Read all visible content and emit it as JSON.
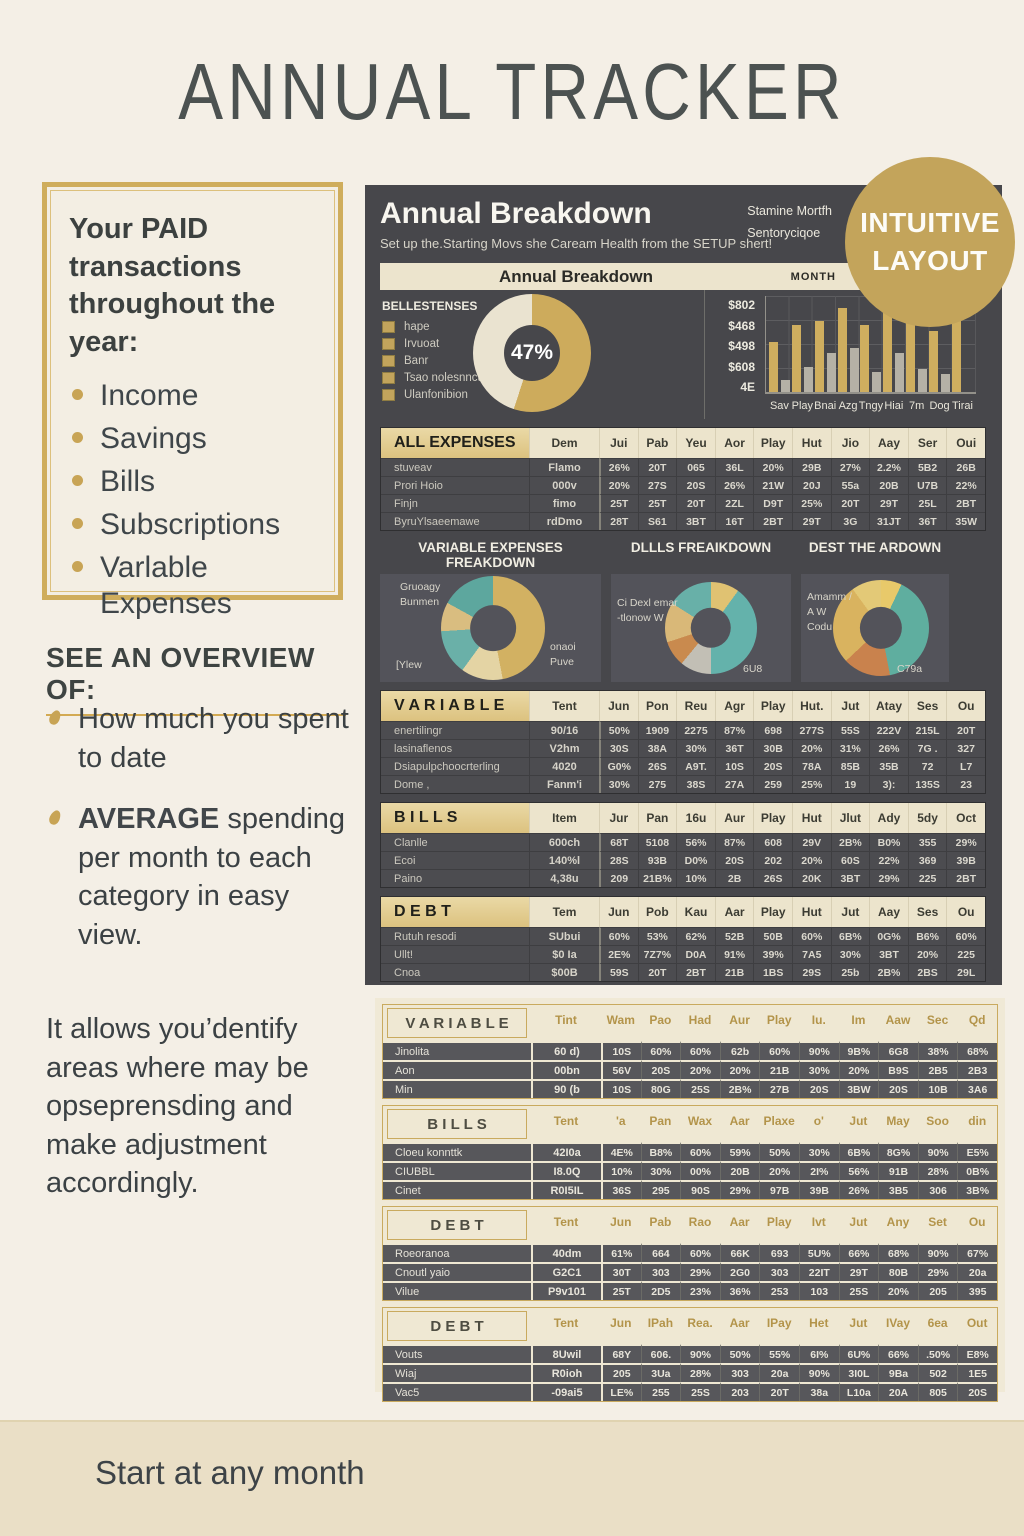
{
  "page": {
    "title": "ANNUAL TRACKER",
    "footer": "Start at any month",
    "background": "#f4efe6",
    "accent_gold": "#c9a959"
  },
  "left": {
    "paid_box": {
      "heading": "Your PAID transactions throughout the year:",
      "items": [
        "Income",
        "Savings",
        "Bills",
        "Subscriptions",
        "Varlable Expenses"
      ]
    },
    "overview": {
      "heading": "SEE AN OVERVIEW OF:",
      "bullets": [
        {
          "bold": "",
          "text": "How much you spent to date"
        },
        {
          "bold": "AVERAGE",
          "text": " spending per month to each category in easy view."
        }
      ]
    },
    "closing": "It allows you’dentify areas where may be opseprensding and make adjustment accordingly."
  },
  "badge": {
    "line1": "INTUITIVE",
    "line2": "LAYOUT",
    "color": "#c3a45b"
  },
  "sheet": {
    "title": "Annual Breakdown",
    "subtitle": "Set up the.Starting Movs she Caream Health from the SETUP shert!",
    "corner_line1": "Stamine Mortfh",
    "corner_line2": "Sentoryciqoe",
    "banner_title": "Annual Breakdown",
    "banner_month": "MONTH",
    "breakdown_titles": [
      "VARIABLE EXPENSES FREAKDOWN",
      "DLLLS FREAIKDOWN",
      "DEST THE ARDOWN"
    ],
    "donut_labels": {
      "d1_topleft": "Gruoagy\nBunmen",
      "d1_bottomleft": "[Ylew",
      "d1_right": "onaoi\nPuve",
      "d2_left": "Ci Dexl emar\n-tlonow W",
      "d2_bottomright": "6U8",
      "d3_left": "Amamm /\nA W\nCodu",
      "d3_bottomright": "C79a"
    }
  },
  "chart_data": [
    {
      "id": "main-donut",
      "type": "pie",
      "title": "BELLESTENSES",
      "center_label": "47%",
      "legend": [
        "hape",
        "Irvuoat",
        "Banr",
        "Tsao nolesnncu",
        "Ulanfonibion"
      ],
      "segments": [
        {
          "color": "#cdab5c",
          "value": 55
        },
        {
          "color": "#eae3d0",
          "value": 45
        }
      ]
    },
    {
      "id": "month-bars",
      "type": "bar",
      "categories": [
        "Sav",
        "Play",
        "Bnai",
        "Azg",
        "Tngy",
        "Hiai",
        "7m",
        "Dog",
        "Tirai"
      ],
      "ylabels": [
        "$802",
        "$468",
        "$498",
        "$608",
        "4E"
      ],
      "ylim": [
        0,
        100
      ],
      "series": [
        {
          "name": "primary",
          "color": "#cfae5f",
          "values": [
            52,
            70,
            74,
            88,
            70,
            84,
            86,
            64,
            80
          ]
        },
        {
          "name": "secondary",
          "color": "#b5b1a6",
          "values": [
            12,
            26,
            41,
            46,
            21,
            41,
            24,
            19,
            0
          ]
        }
      ]
    },
    {
      "id": "variable-donut",
      "type": "pie",
      "title": "VARIABLE EXPENSES FREAKDOWN",
      "segments": [
        {
          "color": "#d2b162",
          "value": 47
        },
        {
          "color": "#e4d4a4",
          "value": 13
        },
        {
          "color": "#6ab0a8",
          "value": 14
        },
        {
          "color": "#d9bd80",
          "value": 9
        },
        {
          "color": "#5da79e",
          "value": 17
        }
      ]
    },
    {
      "id": "bills-donut",
      "type": "pie",
      "title": "DLLLS FREAIKDOWN",
      "segments": [
        {
          "color": "#e0c272",
          "value": 10
        },
        {
          "color": "#64b2ab",
          "value": 40
        },
        {
          "color": "#c2bfb5",
          "value": 11
        },
        {
          "color": "#c98a4e",
          "value": 9
        },
        {
          "color": "#d9b878",
          "value": 14
        },
        {
          "color": "#68b0a8",
          "value": 16
        }
      ]
    },
    {
      "id": "debt-donut",
      "type": "pie",
      "title": "DEST THE ARDOWN",
      "segments": [
        {
          "color": "#e8c96a",
          "value": 7
        },
        {
          "color": "#5fae9f",
          "value": 40
        },
        {
          "color": "#c9824d",
          "value": 16
        },
        {
          "color": "#d9b35f",
          "value": 27
        },
        {
          "color": "#e3c977",
          "value": 10
        }
      ]
    }
  ],
  "tables": {
    "all_expenses": {
      "title": "ALL EXPENSES",
      "columns": [
        "Dem",
        "Jui",
        "Pab",
        "Yeu",
        "Aor",
        "Play",
        "Hut",
        "Jio",
        "Aay",
        "Ser",
        "Oui"
      ],
      "rows": [
        {
          "label": "stuveav",
          "item": "Flamo",
          "values": [
            "26%",
            "20T",
            "065",
            "36L",
            "20%",
            "29B",
            "27%",
            "2.2%",
            "5B2",
            "26B"
          ]
        },
        {
          "label": "Prori Hoio",
          "item": "000v",
          "values": [
            "20%",
            "27S",
            "20S",
            "26%",
            "21W",
            "20J",
            "55a",
            "20B",
            "U7B",
            "22%"
          ]
        },
        {
          "label": "Finjn",
          "item": "fimo",
          "values": [
            "25T",
            "25T",
            "20T",
            "2ZL",
            "D9T",
            "25%",
            "20T",
            "29T",
            "25L",
            "2BT"
          ]
        },
        {
          "label": "ByruYlsaeemawe",
          "item": "rdDmo",
          "values": [
            "28T",
            "S61",
            "3BT",
            "16T",
            "2BT",
            "29T",
            "3G",
            "31JT",
            "36T",
            "35W"
          ]
        }
      ]
    },
    "variable": {
      "title": "V A R I A B L E",
      "columns": [
        "Tent",
        "Jun",
        "Pon",
        "Reu",
        "Agr",
        "Play",
        "Hut.",
        "Jut",
        "Atay",
        "Ses",
        "Ou"
      ],
      "rows": [
        {
          "label": "enertilingr",
          "item": "90/16",
          "values": [
            "50%",
            "1909",
            "2275",
            "87%",
            "698",
            "277S",
            "55S",
            "222V",
            "215L",
            "20T"
          ]
        },
        {
          "label": "lasinaflenos",
          "item": "V2hm",
          "values": [
            "30S",
            "38A",
            "30%",
            "36T",
            "30B",
            "20%",
            "31%",
            "26%",
            "7G .",
            "327"
          ]
        },
        {
          "label": "Dsiapulpchoocrterling",
          "item": "4020",
          "values": [
            "G0%",
            "26S",
            "A9T.",
            "10S",
            "20S",
            "78A",
            "85B",
            "35B",
            "72",
            "L7"
          ]
        },
        {
          "label": "Dome  ,",
          "item": "Fanm'i",
          "values": [
            "30%",
            "275",
            "38S",
            "27A",
            "259",
            "25%",
            "19",
            "3):",
            "135S",
            "23"
          ]
        }
      ]
    },
    "bills": {
      "title": "B I L L S",
      "columns": [
        "Item",
        "Jur",
        "Pan",
        "16u",
        "Aur",
        "Play",
        "Hut",
        "Jlut",
        "Ady",
        "5dy",
        "Oct"
      ],
      "rows": [
        {
          "label": "Clanlle",
          "item": "600ch",
          "values": [
            "68T",
            "5108",
            "56%",
            "87%",
            "608",
            "29V",
            "2B%",
            "B0%",
            "355",
            "29%"
          ]
        },
        {
          "label": "Ecoi",
          "item": "140%l",
          "values": [
            "28S",
            "93B",
            "D0%",
            "20S",
            "202",
            "20%",
            "60S",
            "22%",
            "369",
            "39B"
          ]
        },
        {
          "label": "Paino",
          "item": "4,38u",
          "values": [
            "209",
            "21B%",
            "10%",
            "2B",
            "26S",
            "20K",
            "3BT",
            "29%",
            "225",
            "2BT"
          ]
        }
      ]
    },
    "debt": {
      "title": "D E B T",
      "columns": [
        "Tem",
        "Jun",
        "Pob",
        "Kau",
        "Aar",
        "Play",
        "Hut",
        "Jut",
        "Aay",
        "Ses",
        "Ou"
      ],
      "rows": [
        {
          "label": "Rutuh resodi",
          "item": "SUbui",
          "values": [
            "60%",
            "53%",
            "62%",
            "52B",
            "50B",
            "60%",
            "6B%",
            "0G%",
            "B6%",
            "60%"
          ]
        },
        {
          "label": "Ullt!",
          "item": "$0 Ia",
          "values": [
            "2E%",
            "7Z7%",
            "D0A",
            "91%",
            "39%",
            "7A5",
            "30%",
            "3BT",
            "20%",
            "225"
          ]
        },
        {
          "label": "Cnoa",
          "item": "$00B",
          "values": [
            "59S",
            "20T",
            "2BT",
            "21B",
            "1BS",
            "29S",
            "25b",
            "2B%",
            "2BS",
            "29L"
          ]
        }
      ]
    },
    "variable2": {
      "title": "V A R I A B L E",
      "columns": [
        "Tint",
        "Wam",
        "Pao",
        "Had",
        "Aur",
        "Play",
        "Iu.",
        "Im",
        "Aaw",
        "Sec",
        "Qd"
      ],
      "rows": [
        {
          "label": "Jinolita",
          "item": "60 d)",
          "values": [
            "10S",
            "60%",
            "60%",
            "62b",
            "60%",
            "90%",
            "9B%",
            "6G8",
            "38%",
            "68%"
          ]
        },
        {
          "label": "Aon",
          "item": "00bn",
          "values": [
            "56V",
            "20S",
            "20%",
            "20%",
            "21B",
            "30%",
            "20%",
            "B9S",
            "2B5",
            "2B3"
          ]
        },
        {
          "label": "Min",
          "item": "90 (b",
          "values": [
            "10S",
            "80G",
            "25S",
            "2B%",
            "27B",
            "20S",
            "3BW",
            "20S",
            "10B",
            "3A6"
          ]
        }
      ]
    },
    "bills2": {
      "title": "B I L L S",
      "columns": [
        "Tent",
        "'a",
        "Pan",
        "Wax",
        "Aar",
        "Plaxe",
        "o'",
        "Jut",
        "May",
        "Soo",
        "din"
      ],
      "rows": [
        {
          "label": "Cloeu konnttk",
          "item": "42I0a",
          "values": [
            "4E%",
            "B8%",
            "60%",
            "59%",
            "50%",
            "30%",
            "6B%",
            "8G%",
            "90%",
            "E5%"
          ]
        },
        {
          "label": "CIUBBL",
          "item": "I8.0Q",
          "values": [
            "10%",
            "30%",
            "00%",
            "20B",
            "20%",
            "2I%",
            "56%",
            "91B",
            "28%",
            "0B%"
          ]
        },
        {
          "label": "Cinet",
          "item": "R0I5IL",
          "values": [
            "36S",
            "295",
            "90S",
            "29%",
            "97B",
            "39B",
            "26%",
            "3B5",
            "306",
            "3B%"
          ]
        }
      ]
    },
    "debt2": {
      "title": "D E B T",
      "columns": [
        "Tent",
        "Jun",
        "Pab",
        "Rao",
        "Aar",
        "Play",
        "Ivt",
        "Jut",
        "Any",
        "Set",
        "Ou"
      ],
      "rows": [
        {
          "label": "Roeoranoa",
          "item": "40dm",
          "values": [
            "61%",
            "664",
            "60%",
            "66K",
            "693",
            "5U%",
            "66%",
            "68%",
            "90%",
            "67%"
          ]
        },
        {
          "label": "Cnoutl yaio",
          "item": "G2C1",
          "values": [
            "30T",
            "303",
            "29%",
            "2G0",
            "303",
            "22IT",
            "29T",
            "80B",
            "29%",
            "20a"
          ]
        },
        {
          "label": "Vilue",
          "item": "P9v101",
          "values": [
            "25T",
            "2D5",
            "23%",
            "36%",
            "253",
            "103",
            "25S",
            "20%",
            "205",
            "395"
          ]
        }
      ]
    },
    "debt3": {
      "title": "D E B T",
      "columns": [
        "Tent",
        "Jun",
        "IPah",
        "Rea.",
        "Aar",
        "IPay",
        "Het",
        "Jut",
        "IVay",
        "6ea",
        "Out"
      ],
      "rows": [
        {
          "label": "Vouts",
          "item": "8Uwil",
          "values": [
            "68Y",
            "606.",
            "90%",
            "50%",
            "55%",
            "6I%",
            "6U%",
            "66%",
            ".50%",
            "E8%"
          ]
        },
        {
          "label": "Wiaj",
          "item": "R0ioh",
          "values": [
            "205",
            "3Ua",
            "28%",
            "303",
            "20a",
            "90%",
            "3I0L",
            "9Ba",
            "502",
            "1E5"
          ]
        },
        {
          "label": "Vac5",
          "item": "-09ai5",
          "values": [
            "LE%",
            "255",
            "25S",
            "203",
            "20T",
            "38a",
            "L10a",
            "20A",
            "805",
            "20S"
          ]
        }
      ]
    }
  }
}
